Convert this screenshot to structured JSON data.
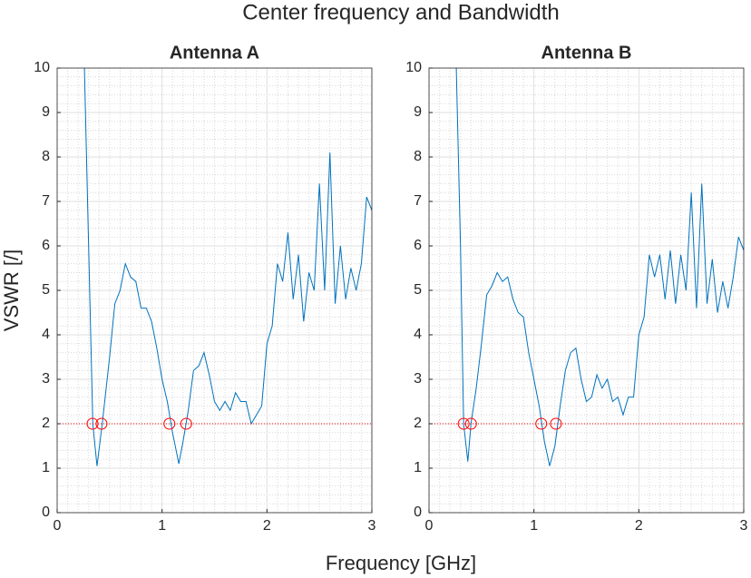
{
  "title": "Center frequency and Bandwidth",
  "xlabel": "Frequency [GHz]",
  "ylabel": "VSWR [/]",
  "chart_data": [
    {
      "type": "line",
      "title": "Antenna A",
      "x": [
        0.26,
        0.3,
        0.34,
        0.38,
        0.43,
        0.5,
        0.55,
        0.6,
        0.65,
        0.7,
        0.75,
        0.8,
        0.85,
        0.9,
        0.95,
        1.0,
        1.05,
        1.1,
        1.16,
        1.2,
        1.25,
        1.3,
        1.35,
        1.4,
        1.45,
        1.5,
        1.55,
        1.6,
        1.65,
        1.7,
        1.75,
        1.8,
        1.85,
        1.9,
        1.95,
        2.0,
        2.05,
        2.1,
        2.15,
        2.2,
        2.25,
        2.3,
        2.35,
        2.4,
        2.45,
        2.5,
        2.55,
        2.6,
        2.65,
        2.7,
        2.75,
        2.8,
        2.85,
        2.9,
        2.95,
        3.0
      ],
      "series": [
        {
          "color": "#0072bd",
          "values": [
            10,
            6,
            2,
            1.05,
            2,
            3.5,
            4.7,
            5.0,
            5.6,
            5.3,
            5.2,
            4.6,
            4.6,
            4.3,
            3.7,
            3.0,
            2.5,
            1.8,
            1.1,
            1.6,
            2.3,
            3.2,
            3.3,
            3.6,
            3.1,
            2.5,
            2.3,
            2.5,
            2.3,
            2.7,
            2.5,
            2.5,
            2.0,
            2.2,
            2.4,
            3.8,
            4.2,
            5.6,
            5.2,
            6.3,
            4.8,
            5.8,
            4.3,
            5.4,
            5.0,
            7.4,
            5.0,
            8.1,
            4.7,
            6.0,
            4.8,
            5.5,
            5.0,
            5.6,
            7.1,
            6.8
          ]
        }
      ],
      "threshold": {
        "value": 2,
        "color": "#ff0000"
      },
      "markers": {
        "color": "#ff0000",
        "x": [
          0.337,
          0.423,
          1.07,
          1.23
        ],
        "values": [
          2,
          2,
          2,
          2
        ]
      },
      "xlim": [
        0,
        3
      ],
      "xticks": [
        0,
        1,
        2,
        3
      ],
      "ylim": [
        0,
        10
      ],
      "yticks": [
        0,
        1,
        2,
        3,
        4,
        5,
        6,
        7,
        8,
        9,
        10
      ],
      "grid": true,
      "minor_grid": true
    },
    {
      "type": "line",
      "title": "Antenna B",
      "x": [
        0.26,
        0.3,
        0.33,
        0.37,
        0.4,
        0.45,
        0.5,
        0.55,
        0.6,
        0.65,
        0.7,
        0.75,
        0.8,
        0.85,
        0.9,
        0.95,
        1.0,
        1.05,
        1.1,
        1.15,
        1.2,
        1.25,
        1.3,
        1.35,
        1.4,
        1.45,
        1.5,
        1.55,
        1.6,
        1.65,
        1.7,
        1.75,
        1.8,
        1.85,
        1.9,
        1.95,
        2.0,
        2.05,
        2.1,
        2.15,
        2.2,
        2.25,
        2.3,
        2.35,
        2.4,
        2.45,
        2.5,
        2.55,
        2.6,
        2.65,
        2.7,
        2.75,
        2.8,
        2.85,
        2.9,
        2.95,
        3.0
      ],
      "series": [
        {
          "color": "#0072bd",
          "values": [
            10,
            6,
            2,
            1.15,
            2,
            2.8,
            3.8,
            4.9,
            5.1,
            5.4,
            5.2,
            5.3,
            4.8,
            4.5,
            4.4,
            3.6,
            3.0,
            2.4,
            1.6,
            1.05,
            1.5,
            2.4,
            3.2,
            3.6,
            3.7,
            3.0,
            2.5,
            2.6,
            3.1,
            2.8,
            3.0,
            2.5,
            2.6,
            2.2,
            2.6,
            2.6,
            4.0,
            4.4,
            5.8,
            5.3,
            5.8,
            4.8,
            5.9,
            4.7,
            5.8,
            5.0,
            7.2,
            4.6,
            7.4,
            4.7,
            5.7,
            4.5,
            5.2,
            4.6,
            5.3,
            6.2,
            5.9
          ]
        }
      ],
      "threshold": {
        "value": 2,
        "color": "#ff0000"
      },
      "markers": {
        "color": "#ff0000",
        "x": [
          0.33,
          0.4,
          1.07,
          1.21
        ],
        "values": [
          2,
          2,
          2,
          2
        ]
      },
      "xlim": [
        0,
        3
      ],
      "xticks": [
        0,
        1,
        2,
        3
      ],
      "ylim": [
        0,
        10
      ],
      "yticks": [
        0,
        1,
        2,
        3,
        4,
        5,
        6,
        7,
        8,
        9,
        10
      ],
      "grid": true,
      "minor_grid": true
    }
  ]
}
